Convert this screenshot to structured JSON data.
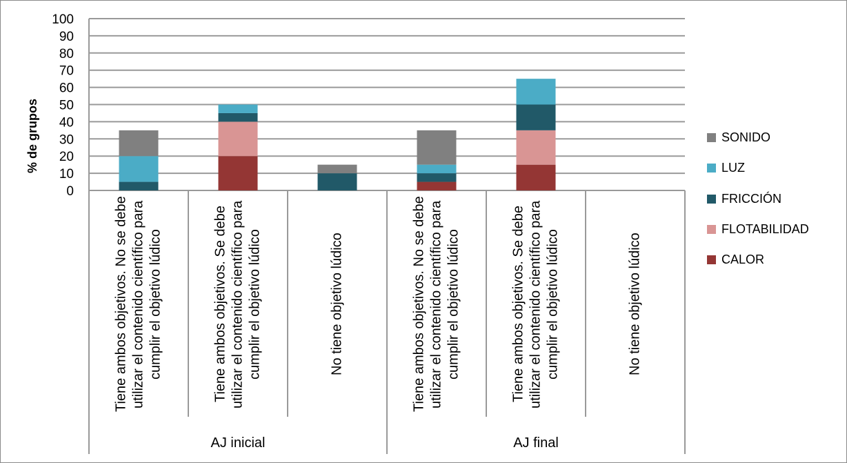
{
  "chart_data": {
    "type": "bar",
    "stacked": true,
    "ylabel": "% de grupos",
    "xlabel": "",
    "ylim": [
      0,
      100
    ],
    "yticks": [
      0,
      10,
      20,
      30,
      40,
      50,
      60,
      70,
      80,
      90,
      100
    ],
    "grid": true,
    "legend_position": "right",
    "groups": [
      {
        "label": "AJ inicial",
        "categories": [
          0,
          1,
          2
        ]
      },
      {
        "label": "AJ final",
        "categories": [
          3,
          4,
          5
        ]
      }
    ],
    "categories": [
      "Tiene ambos objetivos. No se debe utilizar el contenido científico para cumplir el objetivo lúdico",
      "Tiene ambos objetivos. Se debe utilizar el contenido científico para cumplir el objetivo lúdico",
      "No tiene objetivo lúdico",
      "Tiene ambos objetivos. No se debe utilizar el contenido científico para cumplir el objetivo lúdico",
      "Tiene ambos objetivos. Se debe utilizar el contenido científico para cumplir el objetivo lúdico",
      "No tiene objetivo lúdico"
    ],
    "series": [
      {
        "name": "CALOR",
        "color": "#943634",
        "values": [
          0,
          20,
          0,
          5,
          15,
          0
        ]
      },
      {
        "name": "FLOTABILIDAD",
        "color": "#d99594",
        "values": [
          0,
          20,
          0,
          0,
          20,
          0
        ]
      },
      {
        "name": "FRICCIÓN",
        "color": "#215968",
        "values": [
          5,
          5,
          10,
          5,
          15,
          0
        ]
      },
      {
        "name": "LUZ",
        "color": "#4bacc6",
        "values": [
          15,
          5,
          0,
          5,
          15,
          0
        ]
      },
      {
        "name": "SONIDO",
        "color": "#808080",
        "values": [
          15,
          0,
          5,
          20,
          0,
          0
        ]
      }
    ]
  }
}
